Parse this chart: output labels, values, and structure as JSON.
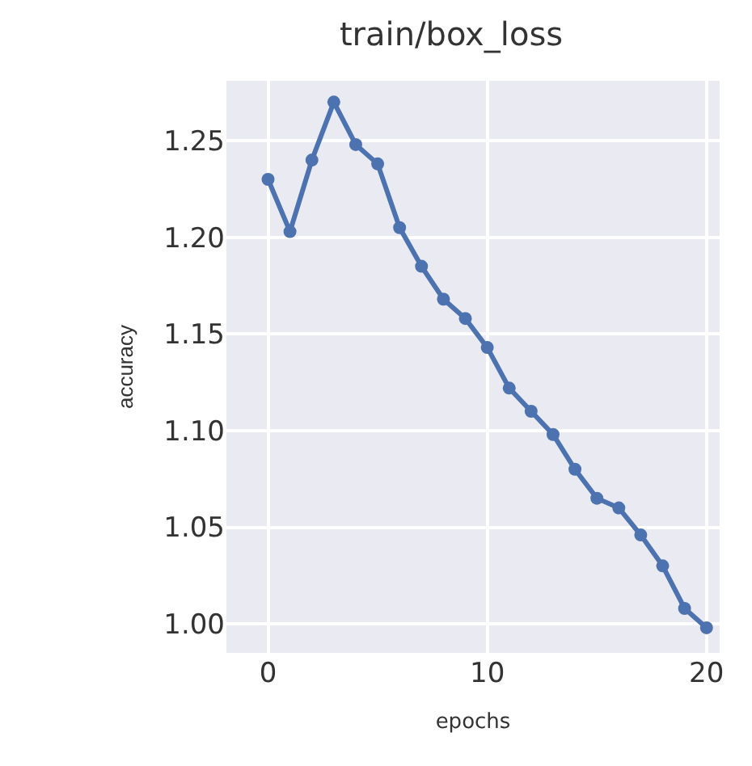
{
  "chart_data": {
    "type": "line",
    "title": "train/box_loss",
    "xlabel": "epochs",
    "ylabel": "accuracy",
    "x": [
      0,
      1,
      2,
      3,
      4,
      5,
      6,
      7,
      8,
      9,
      10,
      11,
      12,
      13,
      14,
      15,
      16,
      17,
      18,
      19,
      20
    ],
    "series": [
      {
        "color": "#4c72b0",
        "values": [
          1.23,
          1.203,
          1.24,
          1.27,
          1.248,
          1.238,
          1.205,
          1.185,
          1.168,
          1.158,
          1.143,
          1.122,
          1.11,
          1.098,
          1.08,
          1.065,
          1.06,
          1.046,
          1.03,
          1.008,
          0.998
        ]
      }
    ],
    "xlim": [
      -1.9,
      20.6
    ],
    "ylim": [
      0.985,
      1.281
    ],
    "xticks": [
      0,
      10,
      20
    ],
    "yticks": [
      {
        "value": 1.0,
        "label": "1.00"
      },
      {
        "value": 1.05,
        "label": "1.05"
      },
      {
        "value": 1.1,
        "label": "1.10"
      },
      {
        "value": 1.15,
        "label": "1.15"
      },
      {
        "value": 1.2,
        "label": "1.20"
      },
      {
        "value": 1.25,
        "label": "1.25"
      }
    ],
    "grid": true,
    "marker": "circle",
    "line_style": "solid"
  }
}
